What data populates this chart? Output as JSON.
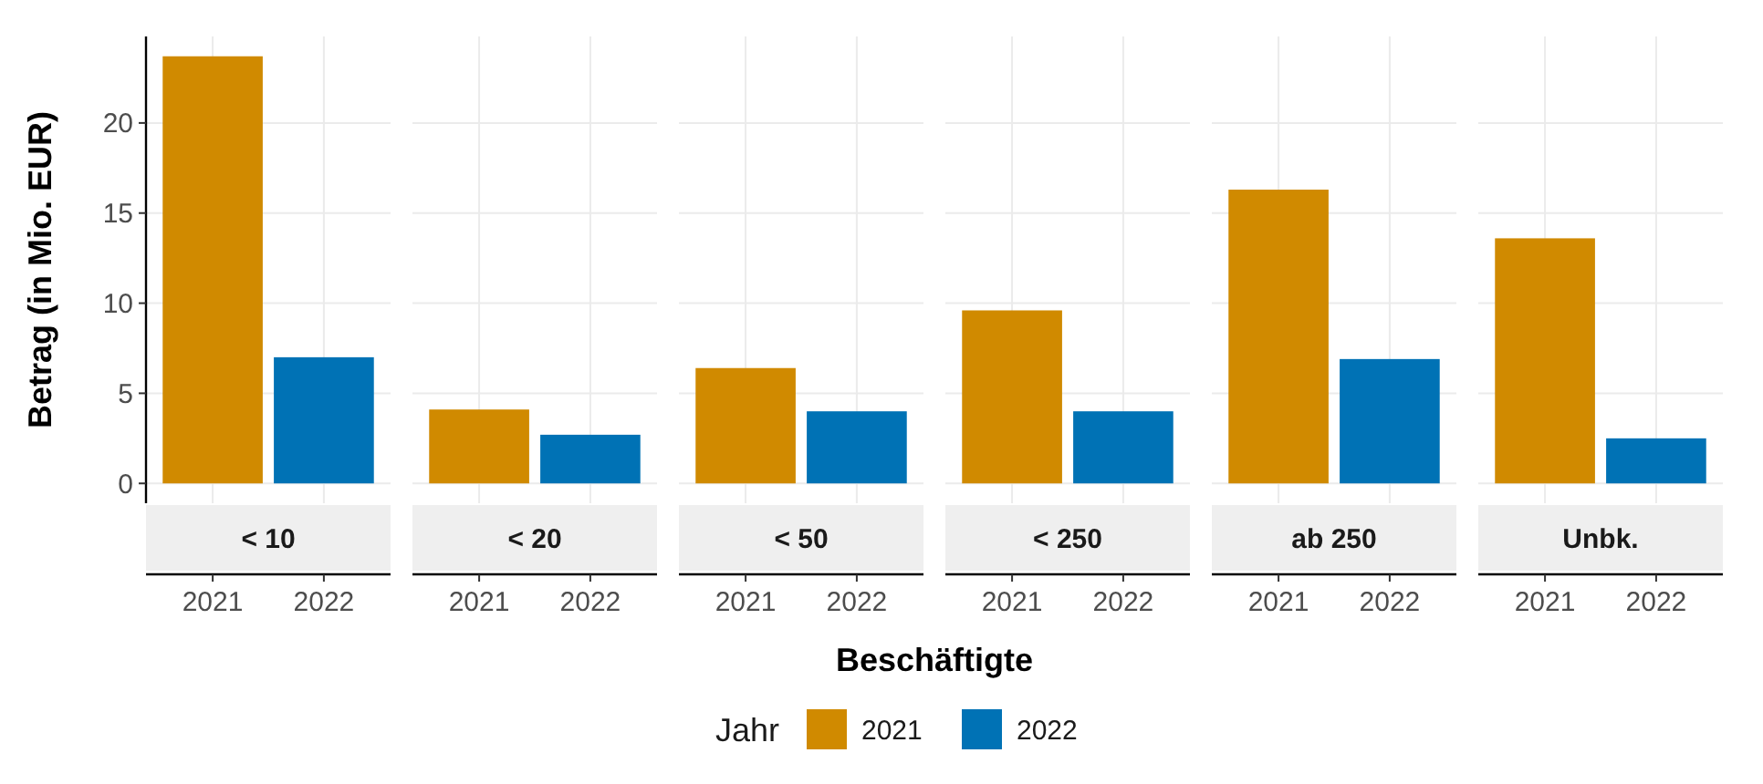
{
  "chart_data": [
    {
      "type": "bar",
      "title": "< 10",
      "ylabel": "Betrag (in Mio. EUR)",
      "legend": "bottom",
      "legend_title": "Jahr",
      "grid": true,
      "categories": [
        "2021",
        "2022"
      ],
      "ylim": [
        -1.1,
        24.8
      ],
      "yticks": [
        0,
        5,
        10,
        15,
        20
      ],
      "series": [
        {
          "name": "2021",
          "color": "#d08a00",
          "values": [
            23.7,
            null
          ]
        },
        {
          "name": "2022",
          "color": "#0072b5",
          "values": [
            null,
            7.0
          ]
        }
      ]
    },
    {
      "type": "bar",
      "title": "< 20",
      "grid": true,
      "tick_labels": "x",
      "categories": [
        "2021",
        "2022"
      ],
      "ylim": [
        -1.1,
        24.8
      ],
      "yticks": [
        0,
        5,
        10,
        15,
        20
      ],
      "series": [
        {
          "color": "#d08a00",
          "values": [
            4.1,
            null
          ]
        },
        {
          "color": "#0072b5",
          "values": [
            null,
            2.7
          ]
        }
      ]
    },
    {
      "type": "bar",
      "title": "< 50",
      "xlabel": "Beschäftigte",
      "grid": true,
      "tick_labels": "x",
      "categories": [
        "2021",
        "2022"
      ],
      "ylim": [
        -1.1,
        24.8
      ],
      "yticks": [
        0,
        5,
        10,
        15,
        20
      ],
      "series": [
        {
          "color": "#d08a00",
          "values": [
            6.4,
            null
          ]
        },
        {
          "color": "#0072b5",
          "values": [
            null,
            4.0
          ]
        }
      ]
    },
    {
      "type": "bar",
      "title": "< 250",
      "grid": true,
      "tick_labels": "x",
      "categories": [
        "2021",
        "2022"
      ],
      "ylim": [
        -1.1,
        24.8
      ],
      "yticks": [
        0,
        5,
        10,
        15,
        20
      ],
      "series": [
        {
          "color": "#d08a00",
          "values": [
            9.6,
            null
          ]
        },
        {
          "color": "#0072b5",
          "values": [
            null,
            4.0
          ]
        }
      ]
    },
    {
      "type": "bar",
      "title": "ab 250",
      "grid": true,
      "tick_labels": "x",
      "categories": [
        "2021",
        "2022"
      ],
      "ylim": [
        -1.1,
        24.8
      ],
      "yticks": [
        0,
        5,
        10,
        15,
        20
      ],
      "series": [
        {
          "color": "#d08a00",
          "values": [
            16.3,
            null
          ]
        },
        {
          "color": "#0072b5",
          "values": [
            null,
            6.9
          ]
        }
      ]
    },
    {
      "type": "bar",
      "title": "Unbk.",
      "grid": true,
      "tick_labels": "x",
      "categories": [
        "2021",
        "2022"
      ],
      "ylim": [
        -1.1,
        24.8
      ],
      "yticks": [
        0,
        5,
        10,
        15,
        20
      ],
      "series": [
        {
          "color": "#d08a00",
          "values": [
            13.6,
            null
          ]
        },
        {
          "color": "#0072b5",
          "values": [
            null,
            2.5
          ]
        }
      ]
    }
  ]
}
